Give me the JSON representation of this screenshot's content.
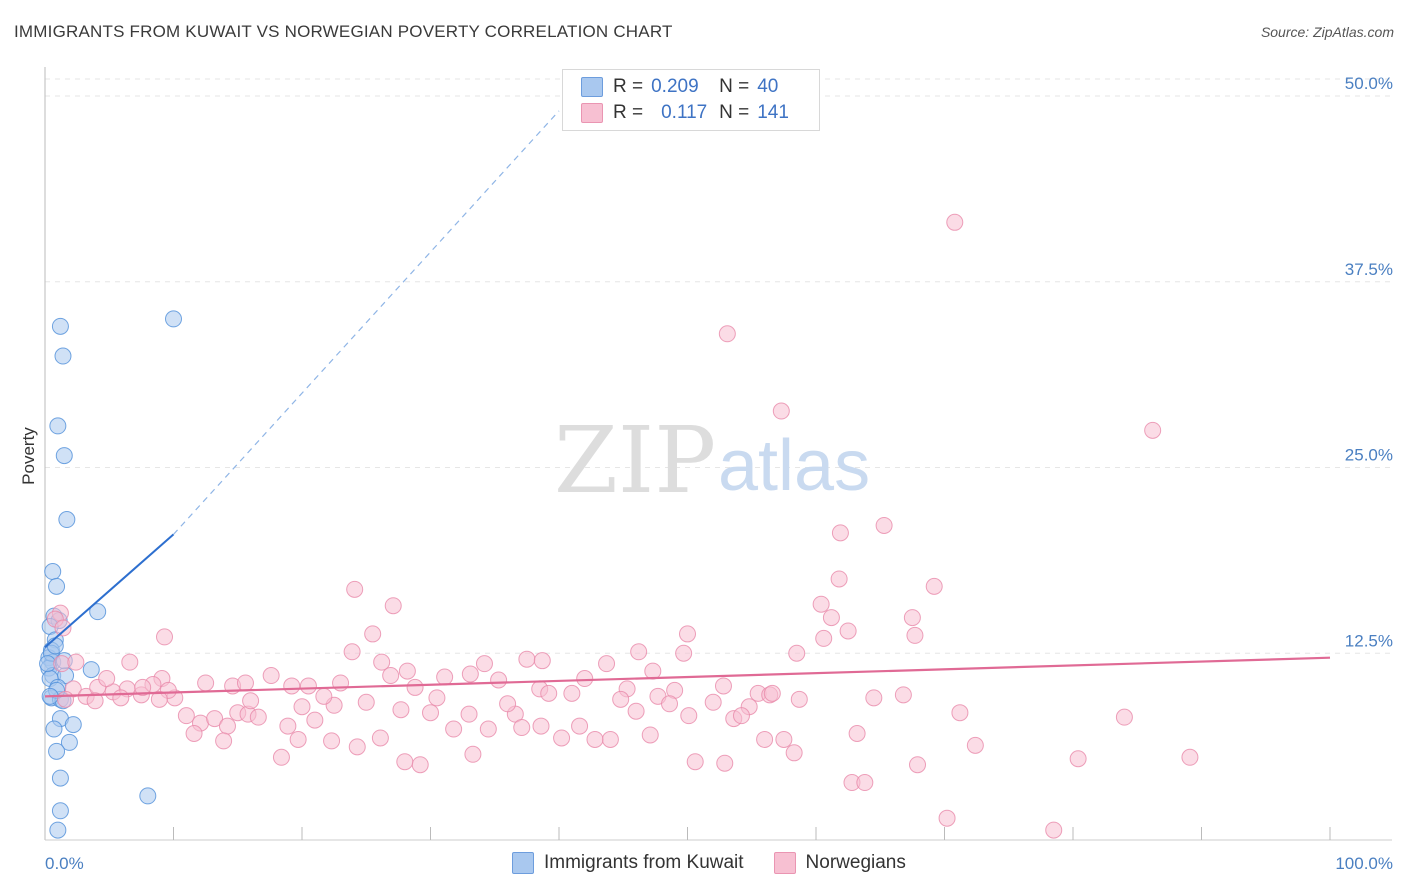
{
  "title": "IMMIGRANTS FROM KUWAIT VS NORWEGIAN POVERTY CORRELATION CHART",
  "source": "Source: ZipAtlas.com",
  "watermark": {
    "zip": "ZIP",
    "atlas": "atlas"
  },
  "legend": {
    "series1": {
      "r_label": "R =",
      "r_value": "0.209",
      "n_label": "N =",
      "n_value": "40"
    },
    "series2": {
      "r_label": "R =",
      "r_value": "0.117",
      "n_label": "N =",
      "n_value": "141"
    }
  },
  "bottom_legend": {
    "series1": "Immigrants from Kuwait",
    "series2": "Norwegians"
  },
  "colors": {
    "kuwait_fill": "#a9c8ef",
    "kuwait_stroke": "#4f8fd9",
    "kuwait_line": "#2d6fcf",
    "norway_fill": "#f7c0d2",
    "norway_stroke": "#e88aaa",
    "norway_line": "#e06a95",
    "tick_text": "#4a7fc1",
    "grid": "#e6e6e6"
  },
  "chart_data": {
    "type": "scatter",
    "title": "IMMIGRANTS FROM KUWAIT VS NORWEGIAN POVERTY CORRELATION CHART",
    "xlabel": "",
    "ylabel": "Poverty",
    "xlim": [
      0,
      100
    ],
    "ylim": [
      0,
      50
    ],
    "y_ticks": [
      {
        "value": 12.5,
        "label": "12.5%"
      },
      {
        "value": 25.0,
        "label": "25.0%"
      },
      {
        "value": 37.5,
        "label": "37.5%"
      },
      {
        "value": 50.0,
        "label": "50.0%"
      }
    ],
    "x_tick_labels": {
      "min": "0.0%",
      "max": "100.0%"
    },
    "grid": "horizontal dashed",
    "legend_position": "top-center",
    "series": [
      {
        "name": "Immigrants from Kuwait",
        "r": 0.209,
        "n": 40,
        "trend": {
          "x0": 0,
          "y0": 12.9,
          "x1": 10,
          "y1": 20.5,
          "dashed_to": {
            "x": 40,
            "y": 49.0
          }
        },
        "points": [
          [
            1.2,
            34.5
          ],
          [
            1.4,
            32.5
          ],
          [
            1.0,
            27.8
          ],
          [
            1.5,
            25.8
          ],
          [
            1.7,
            21.5
          ],
          [
            10.0,
            35.0
          ],
          [
            0.6,
            18.0
          ],
          [
            0.9,
            17.0
          ],
          [
            0.7,
            15.0
          ],
          [
            1.1,
            14.7
          ],
          [
            0.4,
            14.3
          ],
          [
            0.8,
            13.4
          ],
          [
            0.5,
            12.7
          ],
          [
            0.3,
            12.2
          ],
          [
            0.6,
            11.9
          ],
          [
            0.3,
            11.5
          ],
          [
            0.6,
            11.0
          ],
          [
            1.6,
            11.0
          ],
          [
            0.4,
            10.8
          ],
          [
            1.0,
            10.2
          ],
          [
            0.5,
            9.5
          ],
          [
            1.2,
            9.4
          ],
          [
            1.4,
            9.3
          ],
          [
            1.2,
            8.1
          ],
          [
            0.7,
            7.4
          ],
          [
            2.2,
            7.7
          ],
          [
            1.9,
            6.5
          ],
          [
            0.9,
            5.9
          ],
          [
            1.2,
            4.1
          ],
          [
            1.2,
            1.9
          ],
          [
            1.0,
            0.6
          ],
          [
            8.0,
            2.9
          ],
          [
            4.1,
            15.3
          ],
          [
            3.6,
            11.4
          ],
          [
            0.5,
            12.5
          ],
          [
            0.8,
            13.0
          ],
          [
            0.2,
            11.8
          ],
          [
            0.9,
            10.0
          ],
          [
            0.4,
            9.6
          ],
          [
            1.5,
            12.0
          ]
        ]
      },
      {
        "name": "Norwegians",
        "r": 0.117,
        "n": 141,
        "trend": {
          "x0": 0,
          "y0": 9.6,
          "x1": 100,
          "y1": 12.2
        },
        "points": [
          [
            70.8,
            41.5
          ],
          [
            53.1,
            34.0
          ],
          [
            57.3,
            28.8
          ],
          [
            86.2,
            27.5
          ],
          [
            61.9,
            20.6
          ],
          [
            65.3,
            21.1
          ],
          [
            61.8,
            17.5
          ],
          [
            69.2,
            17.0
          ],
          [
            24.1,
            16.8
          ],
          [
            27.1,
            15.7
          ],
          [
            60.4,
            15.8
          ],
          [
            67.5,
            14.9
          ],
          [
            61.2,
            14.9
          ],
          [
            1.2,
            15.2
          ],
          [
            0.8,
            14.8
          ],
          [
            1.4,
            14.2
          ],
          [
            9.3,
            13.6
          ],
          [
            25.5,
            13.8
          ],
          [
            50.0,
            13.8
          ],
          [
            60.6,
            13.5
          ],
          [
            62.5,
            14.0
          ],
          [
            67.7,
            13.7
          ],
          [
            23.9,
            12.6
          ],
          [
            46.2,
            12.6
          ],
          [
            49.7,
            12.5
          ],
          [
            58.5,
            12.5
          ],
          [
            1.3,
            11.8
          ],
          [
            6.6,
            11.9
          ],
          [
            9.1,
            10.8
          ],
          [
            26.2,
            11.9
          ],
          [
            28.2,
            11.3
          ],
          [
            34.2,
            11.8
          ],
          [
            37.5,
            12.1
          ],
          [
            38.7,
            12.0
          ],
          [
            43.7,
            11.8
          ],
          [
            2.2,
            10.1
          ],
          [
            3.2,
            9.6
          ],
          [
            4.1,
            10.2
          ],
          [
            5.3,
            9.9
          ],
          [
            6.4,
            10.1
          ],
          [
            7.5,
            9.7
          ],
          [
            8.4,
            10.4
          ],
          [
            10.1,
            9.5
          ],
          [
            12.5,
            10.5
          ],
          [
            14.6,
            10.3
          ],
          [
            17.6,
            11.0
          ],
          [
            20.5,
            10.3
          ],
          [
            23.0,
            10.5
          ],
          [
            26.9,
            11.0
          ],
          [
            28.8,
            10.2
          ],
          [
            31.1,
            10.9
          ],
          [
            33.1,
            11.1
          ],
          [
            35.3,
            10.7
          ],
          [
            38.5,
            10.1
          ],
          [
            41.0,
            9.8
          ],
          [
            42.0,
            10.8
          ],
          [
            45.3,
            10.1
          ],
          [
            47.3,
            11.3
          ],
          [
            49.0,
            10.0
          ],
          [
            52.8,
            10.3
          ],
          [
            55.5,
            9.8
          ],
          [
            56.4,
            9.7
          ],
          [
            47.7,
            9.6
          ],
          [
            11.0,
            8.3
          ],
          [
            12.1,
            7.8
          ],
          [
            13.2,
            8.1
          ],
          [
            14.2,
            7.6
          ],
          [
            15.0,
            8.5
          ],
          [
            15.8,
            8.4
          ],
          [
            16.6,
            8.2
          ],
          [
            18.9,
            7.6
          ],
          [
            20.0,
            8.9
          ],
          [
            21.0,
            8.0
          ],
          [
            22.5,
            9.0
          ],
          [
            25.0,
            9.2
          ],
          [
            27.7,
            8.7
          ],
          [
            30.0,
            8.5
          ],
          [
            33.0,
            8.4
          ],
          [
            34.5,
            7.4
          ],
          [
            36.6,
            8.4
          ],
          [
            38.6,
            7.6
          ],
          [
            40.2,
            6.8
          ],
          [
            41.6,
            7.6
          ],
          [
            44.0,
            6.7
          ],
          [
            46.0,
            8.6
          ],
          [
            48.6,
            9.1
          ],
          [
            50.1,
            8.3
          ],
          [
            52.0,
            9.2
          ],
          [
            53.6,
            8.1
          ],
          [
            54.8,
            8.9
          ],
          [
            56.0,
            6.7
          ],
          [
            57.5,
            6.7
          ],
          [
            58.3,
            5.8
          ],
          [
            63.2,
            7.1
          ],
          [
            66.8,
            9.7
          ],
          [
            71.2,
            8.5
          ],
          [
            72.4,
            6.3
          ],
          [
            67.9,
            5.0
          ],
          [
            62.8,
            3.8
          ],
          [
            63.8,
            3.8
          ],
          [
            70.2,
            1.4
          ],
          [
            78.5,
            0.6
          ],
          [
            80.4,
            5.4
          ],
          [
            84.0,
            8.2
          ],
          [
            89.1,
            5.5
          ],
          [
            54.2,
            8.3
          ],
          [
            56.6,
            9.8
          ],
          [
            52.9,
            5.1
          ],
          [
            50.6,
            5.2
          ],
          [
            47.1,
            7.0
          ],
          [
            42.8,
            6.7
          ],
          [
            37.1,
            7.5
          ],
          [
            33.3,
            5.7
          ],
          [
            31.8,
            7.4
          ],
          [
            29.2,
            5.0
          ],
          [
            28.0,
            5.2
          ],
          [
            26.1,
            6.8
          ],
          [
            24.3,
            6.2
          ],
          [
            22.3,
            6.6
          ],
          [
            19.7,
            6.7
          ],
          [
            18.4,
            5.5
          ],
          [
            13.9,
            6.6
          ],
          [
            11.6,
            7.1
          ],
          [
            9.6,
            10.0
          ],
          [
            7.6,
            10.2
          ],
          [
            4.8,
            10.8
          ],
          [
            2.4,
            11.9
          ],
          [
            1.6,
            9.4
          ],
          [
            3.9,
            9.3
          ],
          [
            5.9,
            9.5
          ],
          [
            16.0,
            9.3
          ],
          [
            21.7,
            9.6
          ],
          [
            36.0,
            9.1
          ],
          [
            39.2,
            9.8
          ],
          [
            44.8,
            9.4
          ],
          [
            58.7,
            9.4
          ],
          [
            64.5,
            9.5
          ],
          [
            30.5,
            9.5
          ],
          [
            15.6,
            10.5
          ],
          [
            19.2,
            10.3
          ],
          [
            8.9,
            9.4
          ]
        ]
      }
    ]
  }
}
